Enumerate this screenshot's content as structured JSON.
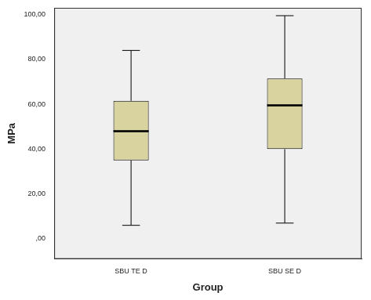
{
  "chart_data": {
    "type": "boxplot",
    "categories": [
      "SBU TE D",
      "SBU SE D"
    ],
    "values": [
      {
        "min": 6,
        "q1": 35,
        "median": 48,
        "q3": 61.5,
        "max": 84
      },
      {
        "min": 7,
        "q1": 40,
        "median": 59.5,
        "q3": 71.5,
        "max": 99.5
      }
    ],
    "color": "#d8d39f",
    "x_label": "Group",
    "y_label": "MPa",
    "ylim": [
      -9,
      103
    ],
    "yticks": [
      {
        "value": 0,
        "label": ",00"
      },
      {
        "value": 20,
        "label": "20,00"
      },
      {
        "value": 40,
        "label": "40,00"
      },
      {
        "value": 60,
        "label": "60,00"
      },
      {
        "value": 80,
        "label": "80,00"
      },
      {
        "value": 100,
        "label": "100,00"
      }
    ],
    "grid": false
  }
}
